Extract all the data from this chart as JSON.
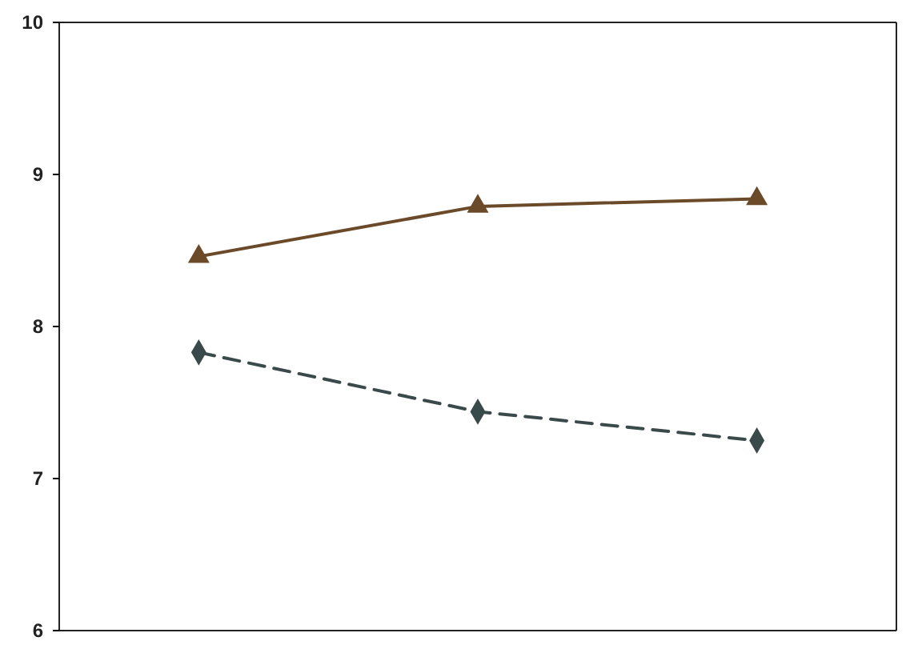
{
  "chart_data": {
    "type": "line",
    "categories": [
      null,
      null,
      null
    ],
    "ylim": [
      6,
      10
    ],
    "yticks": [
      6,
      7,
      8,
      9,
      10
    ],
    "tick_labels": "y",
    "series": [
      {
        "color": "#6b4a2a",
        "values": [
          8.46,
          8.79,
          8.84
        ],
        "marker": "triangle",
        "line_style": "solid"
      },
      {
        "color": "#3a4a4a",
        "values": [
          7.83,
          7.44,
          7.25
        ],
        "marker": "diamond",
        "line_style": "dashed"
      }
    ]
  }
}
